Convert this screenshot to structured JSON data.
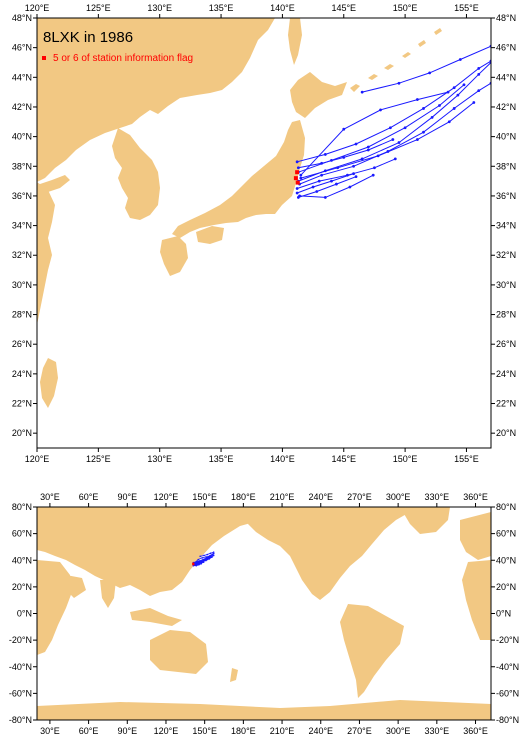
{
  "colors": {
    "land": "#f2c883",
    "track": "#1a1aff",
    "flag": "#ff0000",
    "frame": "#000000"
  },
  "top_map": {
    "title": "8LXK in 1986",
    "legend_label": "5 or 6 of station information flag",
    "lon_range": [
      120,
      157
    ],
    "lat_range": [
      19,
      48
    ],
    "lon_ticks": [
      {
        "value": 120,
        "label": "120°E"
      },
      {
        "value": 125,
        "label": "125°E"
      },
      {
        "value": 130,
        "label": "130°E"
      },
      {
        "value": 135,
        "label": "135°E"
      },
      {
        "value": 140,
        "label": "140°E"
      },
      {
        "value": 145,
        "label": "145°E"
      },
      {
        "value": 150,
        "label": "150°E"
      },
      {
        "value": 155,
        "label": "155°E"
      }
    ],
    "lat_ticks": [
      {
        "value": 20,
        "label": "20°N"
      },
      {
        "value": 22,
        "label": "22°N"
      },
      {
        "value": 24,
        "label": "24°N"
      },
      {
        "value": 26,
        "label": "26°N"
      },
      {
        "value": 28,
        "label": "28°N"
      },
      {
        "value": 30,
        "label": "30°N"
      },
      {
        "value": 32,
        "label": "32°N"
      },
      {
        "value": 34,
        "label": "34°N"
      },
      {
        "value": 36,
        "label": "36°N"
      },
      {
        "value": 38,
        "label": "38°N"
      },
      {
        "value": 40,
        "label": "40°N"
      },
      {
        "value": 42,
        "label": "42°N"
      },
      {
        "value": 44,
        "label": "44°N"
      },
      {
        "value": 46,
        "label": "46°N"
      },
      {
        "value": 48,
        "label": "48°N"
      }
    ],
    "tracks": [
      [
        [
          141.3,
          37.0
        ],
        [
          143.5,
          37.7
        ],
        [
          146.5,
          38.5
        ],
        [
          149.5,
          39.6
        ],
        [
          152.2,
          41.3
        ],
        [
          154.3,
          42.8
        ],
        [
          156.0,
          44.2
        ],
        [
          157.0,
          45.0
        ]
      ],
      [
        [
          141.3,
          37.6
        ],
        [
          144.0,
          38.4
        ],
        [
          147.0,
          39.3
        ],
        [
          150.0,
          40.6
        ],
        [
          152.8,
          42.1
        ],
        [
          154.8,
          43.5
        ]
      ],
      [
        [
          141.4,
          36.8
        ],
        [
          143.2,
          37.4
        ],
        [
          145.8,
          38.0
        ],
        [
          148.6,
          39.0
        ],
        [
          151.5,
          40.3
        ],
        [
          154.0,
          41.9
        ],
        [
          156.0,
          43.1
        ],
        [
          157.0,
          43.6
        ]
      ],
      [
        [
          141.5,
          37.2
        ],
        [
          144.5,
          37.9
        ],
        [
          147.8,
          38.7
        ],
        [
          151.0,
          39.8
        ],
        [
          153.6,
          41.0
        ],
        [
          155.6,
          42.3
        ]
      ],
      [
        [
          141.2,
          36.5
        ],
        [
          143.0,
          37.0
        ],
        [
          145.3,
          37.4
        ],
        [
          147.5,
          37.9
        ],
        [
          149.2,
          38.5
        ]
      ],
      [
        [
          141.2,
          36.2
        ],
        [
          142.5,
          36.6
        ],
        [
          144.0,
          37.0
        ],
        [
          145.8,
          37.5
        ]
      ],
      [
        [
          141.3,
          35.9
        ],
        [
          142.8,
          36.3
        ],
        [
          144.4,
          36.8
        ],
        [
          146.0,
          37.3
        ]
      ],
      [
        [
          141.2,
          38.3
        ],
        [
          143.5,
          38.8
        ],
        [
          146.0,
          39.5
        ],
        [
          148.8,
          40.6
        ],
        [
          151.5,
          41.9
        ],
        [
          154.0,
          43.3
        ],
        [
          156.0,
          44.6
        ],
        [
          157.0,
          45.1
        ]
      ],
      [
        [
          141.3,
          37.9
        ],
        [
          143.2,
          38.2
        ],
        [
          145.0,
          38.6
        ],
        [
          147.0,
          39.1
        ],
        [
          149.0,
          39.8
        ]
      ],
      [
        [
          146.5,
          43.0
        ],
        [
          149.5,
          43.6
        ],
        [
          152.0,
          44.3
        ],
        [
          154.5,
          45.2
        ],
        [
          157.0,
          46.1
        ]
      ],
      [
        [
          141.5,
          37.4
        ],
        [
          145.0,
          40.5
        ],
        [
          148.0,
          41.8
        ],
        [
          151.0,
          42.5
        ],
        [
          153.5,
          43.0
        ]
      ],
      [
        [
          141.4,
          36.0
        ],
        [
          143.5,
          35.9
        ],
        [
          145.5,
          36.6
        ],
        [
          147.4,
          37.4
        ]
      ]
    ],
    "flag_points": [
      [
        141.2,
        37.6
      ],
      [
        141.25,
        36.9
      ],
      [
        141.1,
        37.2
      ]
    ]
  },
  "bottom_map": {
    "lon_range": [
      20,
      372
    ],
    "lat_range": [
      -80,
      80
    ],
    "lon_ticks": [
      {
        "value": 30,
        "label": "30°E"
      },
      {
        "value": 60,
        "label": "60°E"
      },
      {
        "value": 90,
        "label": "90°E"
      },
      {
        "value": 120,
        "label": "120°E"
      },
      {
        "value": 150,
        "label": "150°E"
      },
      {
        "value": 180,
        "label": "180°E"
      },
      {
        "value": 210,
        "label": "210°E"
      },
      {
        "value": 240,
        "label": "240°E"
      },
      {
        "value": 270,
        "label": "270°E"
      },
      {
        "value": 300,
        "label": "300°E"
      },
      {
        "value": 330,
        "label": "330°E"
      },
      {
        "value": 360,
        "label": "360°E"
      }
    ],
    "lat_ticks": [
      {
        "value": -80,
        "label": "-80°N"
      },
      {
        "value": -60,
        "label": "-60°N"
      },
      {
        "value": -40,
        "label": "-40°N"
      },
      {
        "value": -20,
        "label": "-20°N"
      },
      {
        "value": 0,
        "label": "0°N"
      },
      {
        "value": 20,
        "label": "20°N"
      },
      {
        "value": 40,
        "label": "40°N"
      },
      {
        "value": 60,
        "label": "60°N"
      },
      {
        "value": 80,
        "label": "80°N"
      }
    ]
  }
}
